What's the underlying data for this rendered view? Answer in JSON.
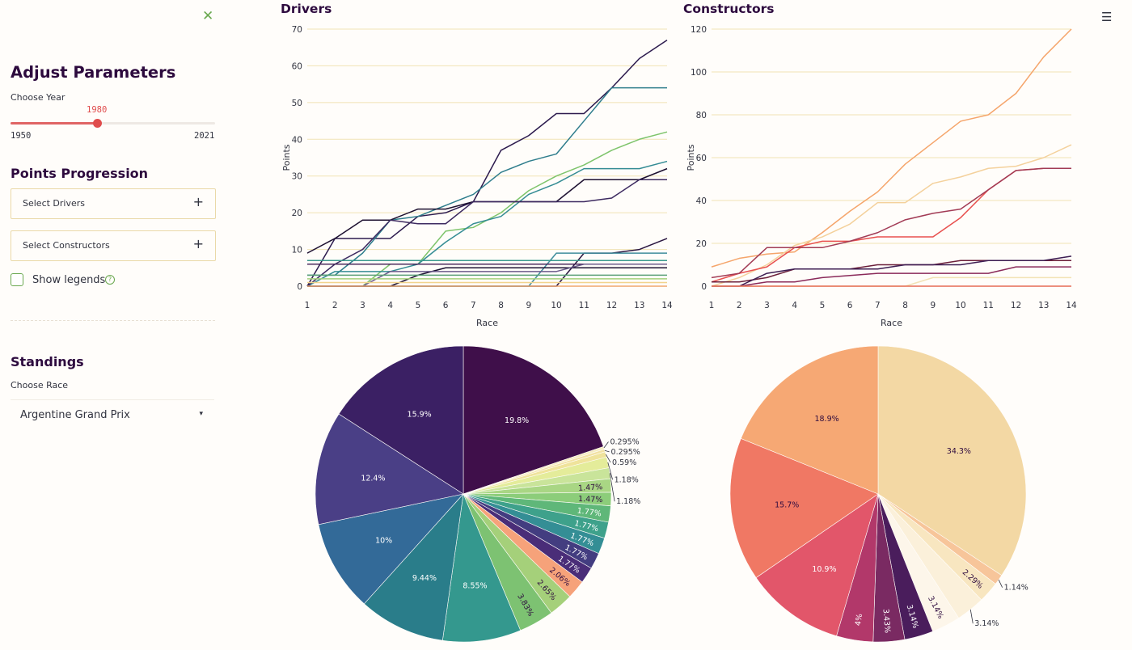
{
  "sidebar": {
    "close_icon": "close-icon",
    "heading": "Adjust Parameters",
    "year_label": "Choose Year",
    "slider": {
      "value": "1980",
      "min": "1950",
      "max": "2021",
      "fraction": 0.4225
    },
    "points_heading": "Points Progression",
    "drivers_expander": "Select Drivers",
    "constructors_expander": "Select Constructors",
    "plus_icon": "+",
    "show_legends": "Show legends",
    "help_icon": "?",
    "standings_heading": "Standings",
    "race_label": "Choose Race",
    "race_value": "Argentine Grand Prix",
    "caret_icon": "▾"
  },
  "main": {
    "menu_icon": "☰",
    "drivers_title": "Drivers",
    "constructors_title": "Constructors"
  },
  "chart_data": [
    {
      "type": "line",
      "xlabel": "Race",
      "ylabel": "Points",
      "x": [
        1,
        2,
        3,
        4,
        5,
        6,
        7,
        8,
        9,
        10,
        11,
        12,
        13,
        14
      ],
      "ylim": [
        0,
        70
      ],
      "yticks": [
        0,
        10,
        20,
        30,
        40,
        50,
        60,
        70
      ],
      "series": [
        {
          "color": "#2d1b4e",
          "values": [
            0,
            13,
            13,
            13,
            19,
            20,
            23,
            37,
            41,
            47,
            47,
            54,
            62,
            67
          ]
        },
        {
          "color": "#2e7d8c",
          "values": [
            3,
            3,
            9,
            18,
            19,
            22,
            25,
            31,
            34,
            36,
            45,
            54,
            54,
            54
          ]
        },
        {
          "color": "#7ec46b",
          "values": [
            0,
            0,
            0,
            6,
            6,
            15,
            16,
            20,
            26,
            30,
            33,
            37,
            40,
            42
          ]
        },
        {
          "color": "#348c94",
          "values": [
            0,
            4,
            4,
            4,
            6,
            12,
            17,
            19,
            25,
            28,
            32,
            32,
            32,
            34
          ]
        },
        {
          "color": "#1d1030",
          "values": [
            9,
            13,
            18,
            18,
            21,
            21,
            23,
            23,
            23,
            23,
            29,
            29,
            29,
            32
          ]
        },
        {
          "color": "#3d2a60",
          "values": [
            0,
            6,
            10,
            18,
            17,
            17,
            23,
            23,
            23,
            23,
            23,
            24,
            29,
            29
          ]
        },
        {
          "color": "#2a1640",
          "values": [
            0,
            0,
            0,
            0,
            0,
            0,
            0,
            0,
            0,
            0,
            9,
            9,
            10,
            13
          ]
        },
        {
          "color": "#3e8d9c",
          "values": [
            0,
            0,
            0,
            0,
            0,
            0,
            0,
            0,
            0,
            9,
            9,
            9,
            9,
            9
          ]
        },
        {
          "color": "#3a9a8e",
          "values": [
            7,
            7,
            7,
            7,
            7,
            7,
            7,
            7,
            7,
            7,
            7,
            7,
            7,
            7
          ]
        },
        {
          "color": "#4b2a5c",
          "values": [
            6,
            6,
            6,
            6,
            6,
            6,
            6,
            6,
            6,
            6,
            6,
            6,
            6,
            6
          ]
        },
        {
          "color": "#1a1030",
          "values": [
            0,
            0,
            0,
            0,
            3,
            5,
            5,
            5,
            5,
            5,
            5,
            5,
            5,
            5
          ]
        },
        {
          "color": "#6a5a8a",
          "values": [
            0,
            0,
            0,
            4,
            4,
            4,
            4,
            4,
            4,
            4,
            6,
            6,
            6,
            6
          ]
        },
        {
          "color": "#5aa077",
          "values": [
            3,
            3,
            3,
            3,
            3,
            3,
            3,
            3,
            3,
            3,
            3,
            3,
            3,
            3
          ]
        },
        {
          "color": "#a5d07a",
          "values": [
            2,
            2,
            2,
            2,
            2,
            2,
            2,
            2,
            2,
            2,
            2,
            2,
            2,
            2
          ]
        },
        {
          "color": "#f0a66c",
          "values": [
            0,
            0,
            0,
            0,
            0,
            0,
            0,
            0,
            0,
            0,
            0,
            0,
            0,
            0
          ]
        },
        {
          "color": "#f1d48c",
          "values": [
            1,
            1,
            1,
            1,
            1,
            1,
            1,
            1,
            1,
            1,
            1,
            1,
            1,
            1
          ]
        }
      ]
    },
    {
      "type": "line",
      "xlabel": "Race",
      "ylabel": "Points",
      "x": [
        1,
        2,
        3,
        4,
        5,
        6,
        7,
        8,
        9,
        10,
        11,
        12,
        13,
        14
      ],
      "ylim": [
        0,
        120
      ],
      "yticks": [
        0,
        20,
        40,
        60,
        80,
        100,
        120
      ],
      "series": [
        {
          "color": "#f5a56b",
          "values": [
            9,
            13,
            15,
            16,
            25,
            35,
            44,
            57,
            67,
            77,
            80,
            90,
            107,
            120
          ]
        },
        {
          "color": "#f4d19c",
          "values": [
            0,
            4,
            10,
            19,
            23,
            29,
            39,
            39,
            48,
            51,
            55,
            56,
            60,
            66
          ]
        },
        {
          "color": "#e8504e",
          "values": [
            2,
            6,
            9,
            18,
            21,
            21,
            23,
            23,
            23,
            32,
            45,
            54,
            55,
            55
          ]
        },
        {
          "color": "#a23b55",
          "values": [
            4,
            6,
            18,
            18,
            18,
            21,
            25,
            31,
            34,
            36,
            45,
            54,
            55,
            55
          ]
        },
        {
          "color": "#6b1f3a",
          "values": [
            2,
            2,
            4,
            8,
            8,
            8,
            10,
            10,
            10,
            12,
            12,
            12,
            12,
            12
          ]
        },
        {
          "color": "#3d1d52",
          "values": [
            0,
            0,
            6,
            8,
            8,
            8,
            8,
            10,
            10,
            10,
            12,
            12,
            12,
            14
          ]
        },
        {
          "color": "#8a2a5a",
          "values": [
            0,
            0,
            2,
            2,
            4,
            5,
            6,
            6,
            6,
            6,
            6,
            9,
            9,
            9
          ]
        },
        {
          "color": "#f2e2b5",
          "values": [
            0,
            0,
            0,
            0,
            0,
            0,
            0,
            0,
            4,
            4,
            4,
            4,
            4,
            4
          ]
        },
        {
          "color": "#e66b54",
          "values": [
            0,
            0,
            0,
            0,
            0,
            0,
            0,
            0,
            0,
            0,
            0,
            0,
            0,
            0
          ]
        }
      ]
    },
    {
      "type": "pie",
      "labels_shown": [
        "19.8%",
        "0.295%",
        "0.295%",
        "0.59%",
        "1.18%",
        "1.18%",
        "1.47%",
        "1.47%",
        "1.77%",
        "1.77%",
        "1.77%",
        "1.77%",
        "1.77%",
        "2.06%",
        "2.65%",
        "3.83%",
        "8.55%",
        "9.44%",
        "10%",
        "12.4%",
        "15.9%"
      ],
      "values": [
        19.8,
        0.295,
        0.295,
        0.59,
        1.18,
        1.18,
        1.47,
        1.47,
        1.77,
        1.77,
        1.77,
        1.77,
        1.77,
        2.06,
        2.65,
        3.83,
        8.55,
        9.44,
        10,
        12.4,
        15.9
      ],
      "colors": [
        "#3f0f4a",
        "#f5ecc2",
        "#f2e2a4",
        "#efe39b",
        "#e4ec9a",
        "#c9e49a",
        "#a9d684",
        "#8ccd7a",
        "#5fb779",
        "#3ea18b",
        "#348e95",
        "#433d80",
        "#4a2d78",
        "#f6a27a",
        "#a5d07a",
        "#7dc272",
        "#34988e",
        "#2a7d8a",
        "#336a98",
        "#4a3f86",
        "#3b2064"
      ],
      "label_colors": [
        "#ffffff",
        "#2d0a3e",
        "#2d0a3e",
        "#2d0a3e",
        "#2d0a3e",
        "#2d0a3e",
        "#2d0a3e",
        "#2d0a3e",
        "#ffffff",
        "#ffffff",
        "#ffffff",
        "#ffffff",
        "#ffffff",
        "#2d0a3e",
        "#2d0a3e",
        "#2d0a3e",
        "#ffffff",
        "#ffffff",
        "#ffffff",
        "#ffffff",
        "#ffffff"
      ],
      "outside": [
        false,
        true,
        true,
        true,
        true,
        true,
        false,
        false,
        false,
        false,
        false,
        false,
        false,
        false,
        false,
        false,
        false,
        false,
        false,
        false,
        false
      ]
    },
    {
      "type": "pie",
      "labels_shown": [
        "34.3%",
        "1.14%",
        "2.29%",
        "3.14%",
        "3.14%",
        "3.14%",
        "3.43%",
        "4%",
        "10.9%",
        "15.7%",
        "18.9%"
      ],
      "values": [
        34.3,
        1.14,
        2.29,
        3.14,
        3.14,
        3.14,
        3.43,
        4,
        10.9,
        15.7,
        18.9
      ],
      "colors": [
        "#f3d8a4",
        "#f7c59a",
        "#f8e6c0",
        "#fbf0da",
        "#fdf6ea",
        "#4a1d5c",
        "#7a2a62",
        "#b2386a",
        "#e2566a",
        "#f07864",
        "#f6a874"
      ],
      "label_colors": [
        "#2d0a3e",
        "#2d0a3e",
        "#2d0a3e",
        "#2d0a3e",
        "#2d0a3e",
        "#ffffff",
        "#ffffff",
        "#ffffff",
        "#ffffff",
        "#2d0a3e",
        "#2d0a3e"
      ],
      "outside": [
        false,
        true,
        false,
        true,
        false,
        false,
        false,
        false,
        false,
        false,
        false
      ]
    }
  ]
}
